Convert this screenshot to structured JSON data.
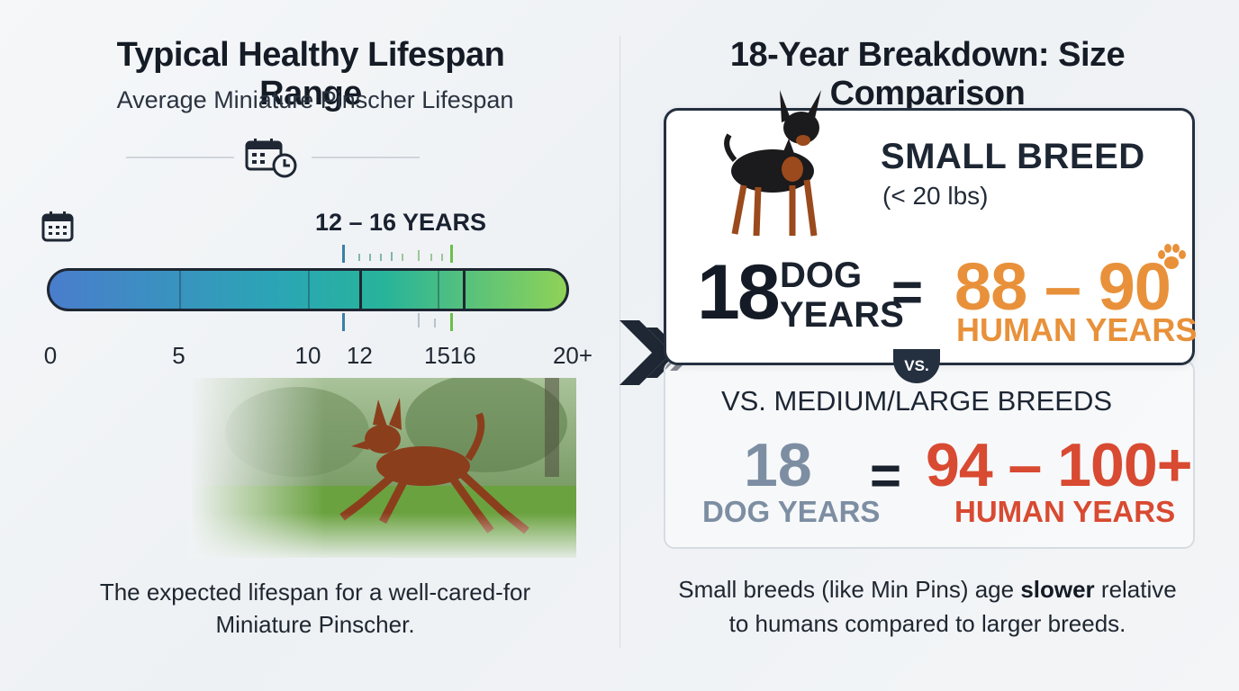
{
  "left": {
    "title": "Typical Healthy Lifespan Range",
    "subtitle": "Average Miniature Pinscher Lifespan",
    "range_label": "12 – 16 YEARS",
    "range_start": 12,
    "range_end": 16,
    "scale_max": 20,
    "ticks": [
      {
        "value": 0,
        "label": "0"
      },
      {
        "value": 5,
        "label": "5"
      },
      {
        "value": 10,
        "label": "10"
      },
      {
        "value": 12,
        "label": "12"
      },
      {
        "value": 15,
        "label": "15"
      },
      {
        "value": 16,
        "label": "16"
      },
      {
        "value": 20,
        "label": "20+"
      }
    ],
    "caption_line1": "The expected lifespan for a well-cared-for",
    "caption_line2": "Miniature Pinscher.",
    "icons": [
      "calendar-clock-icon",
      "calendar-icon"
    ]
  },
  "right": {
    "title": "18-Year Breakdown: Size Comparison",
    "small": {
      "breed": "SMALL BREED",
      "weight": "(< 20 lbs)",
      "dog_years": "18",
      "dog_word1": "DOG",
      "dog_word2": "YEARS",
      "equals": "=",
      "human_years": "88 – 90",
      "human_word": "HUMAN YEARS"
    },
    "vs_badge": "VS.",
    "large": {
      "title": "VS. MEDIUM/LARGE BREEDS",
      "dog_years": "18",
      "dog_word": "DOG YEARS",
      "equals": "=",
      "human_years": "94 – 100+",
      "human_word": "HUMAN YEARS"
    },
    "caption_pre": "Small breeds (like Min Pins) age ",
    "caption_bold": "slower",
    "caption_post": " relative",
    "caption_line2": "to humans compared to larger breeds.",
    "icons": [
      "paw-icon"
    ]
  },
  "colors": {
    "orange": "#e8913a",
    "red": "#d84a31",
    "slate": "#7d8ea3",
    "dark": "#243040"
  }
}
